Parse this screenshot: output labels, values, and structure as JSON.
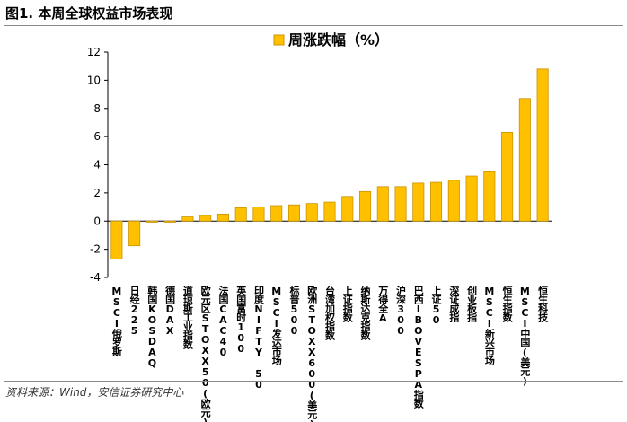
{
  "figure_title": "图1. 本周全球权益市场表现",
  "source_note": "资料来源：Wind，安信证券研究中心",
  "chart_data": {
    "type": "bar",
    "categories": [
      "MSCI俄罗斯",
      "日经225",
      "韩国KOSDAQ",
      "德国DAX",
      "道琼斯工业指数",
      "欧元区STOXX50(欧元)",
      "法国CAC40",
      "英国富时100",
      "印度NIFTY 50",
      "MSCI发达市场",
      "标普500",
      "欧洲STOXX600(美元)",
      "台湾加权指数",
      "上证指数",
      "纳斯达克指数",
      "万得全A",
      "沪深300",
      "巴西IBOVESPA指数",
      "上证50",
      "深证成指",
      "创业板指",
      "MSCI新兴市场",
      "恒生指数",
      "MSCI中国(美元)",
      "恒生科技"
    ],
    "series": [
      {
        "name": "周涨跌幅（%）",
        "values": [
          -2.7,
          -1.75,
          -0.05,
          -0.03,
          0.3,
          0.4,
          0.5,
          0.95,
          1.0,
          1.1,
          1.15,
          1.25,
          1.35,
          1.75,
          2.1,
          2.45,
          2.45,
          2.7,
          2.75,
          2.9,
          3.2,
          3.5,
          6.3,
          8.7,
          10.8
        ],
        "color": "#FFC000",
        "edge_color": "#C99400"
      }
    ],
    "yticks": [
      -4,
      -2,
      0,
      2,
      4,
      6,
      8,
      10,
      12
    ],
    "ylim": [
      -4,
      12
    ],
    "grid": false,
    "legend": "top-center"
  }
}
